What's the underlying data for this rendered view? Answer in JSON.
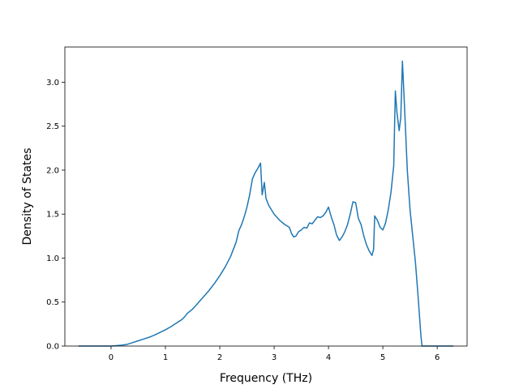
{
  "chart_data": {
    "type": "line",
    "title": "",
    "xlabel": "Frequency (THz)",
    "ylabel": "Density of States",
    "xlim": [
      -0.85,
      6.55
    ],
    "ylim": [
      0.0,
      3.4
    ],
    "x_ticks": [
      0,
      1,
      2,
      3,
      4,
      5,
      6
    ],
    "y_ticks": [
      0.0,
      0.5,
      1.0,
      1.5,
      2.0,
      2.5,
      3.0
    ],
    "x_tick_labels": [
      "0",
      "1",
      "2",
      "3",
      "4",
      "5",
      "6"
    ],
    "y_tick_labels": [
      "0.0",
      "0.5",
      "1.0",
      "1.5",
      "2.0",
      "2.5",
      "3.0"
    ],
    "grid": false,
    "colors": {
      "line": "#1f77b4",
      "axes": "#000000"
    },
    "series": [
      {
        "x": [
          -0.6,
          -0.4,
          -0.2,
          0.0,
          0.1,
          0.2,
          0.3,
          0.4,
          0.5,
          0.6,
          0.7,
          0.8,
          0.9,
          1.0,
          1.1,
          1.2,
          1.3,
          1.35,
          1.4,
          1.5,
          1.6,
          1.7,
          1.8,
          1.9,
          2.0,
          2.1,
          2.2,
          2.3,
          2.35,
          2.4,
          2.45,
          2.5,
          2.55,
          2.6,
          2.65,
          2.7,
          2.75,
          2.78,
          2.82,
          2.85,
          2.9,
          3.0,
          3.1,
          3.2,
          3.28,
          3.32,
          3.36,
          3.4,
          3.45,
          3.5,
          3.55,
          3.6,
          3.65,
          3.7,
          3.75,
          3.8,
          3.85,
          3.9,
          3.95,
          4.0,
          4.05,
          4.1,
          4.15,
          4.2,
          4.25,
          4.3,
          4.35,
          4.4,
          4.45,
          4.5,
          4.55,
          4.6,
          4.65,
          4.7,
          4.75,
          4.8,
          4.83,
          4.85,
          4.9,
          4.95,
          5.0,
          5.05,
          5.1,
          5.15,
          5.2,
          5.23,
          5.26,
          5.3,
          5.33,
          5.36,
          5.4,
          5.45,
          5.5,
          5.55,
          5.6,
          5.65,
          5.7,
          5.72,
          5.8,
          6.0,
          6.2,
          6.3
        ],
        "y": [
          0.0,
          0.0,
          0.0,
          0.0,
          0.005,
          0.01,
          0.02,
          0.04,
          0.06,
          0.08,
          0.1,
          0.125,
          0.155,
          0.185,
          0.22,
          0.26,
          0.3,
          0.33,
          0.37,
          0.42,
          0.49,
          0.56,
          0.63,
          0.71,
          0.8,
          0.9,
          1.02,
          1.18,
          1.31,
          1.38,
          1.47,
          1.58,
          1.72,
          1.9,
          1.97,
          2.02,
          2.08,
          1.72,
          1.86,
          1.68,
          1.6,
          1.5,
          1.43,
          1.38,
          1.35,
          1.28,
          1.24,
          1.25,
          1.3,
          1.32,
          1.35,
          1.34,
          1.4,
          1.39,
          1.43,
          1.47,
          1.46,
          1.48,
          1.52,
          1.58,
          1.47,
          1.38,
          1.26,
          1.2,
          1.24,
          1.3,
          1.38,
          1.5,
          1.64,
          1.63,
          1.45,
          1.38,
          1.25,
          1.15,
          1.08,
          1.03,
          1.1,
          1.48,
          1.43,
          1.35,
          1.32,
          1.4,
          1.55,
          1.75,
          2.05,
          2.9,
          2.65,
          2.45,
          2.6,
          3.24,
          2.7,
          2.0,
          1.55,
          1.25,
          0.95,
          0.55,
          0.12,
          0.0,
          0.0,
          0.0,
          0.0,
          0.0
        ]
      }
    ]
  }
}
